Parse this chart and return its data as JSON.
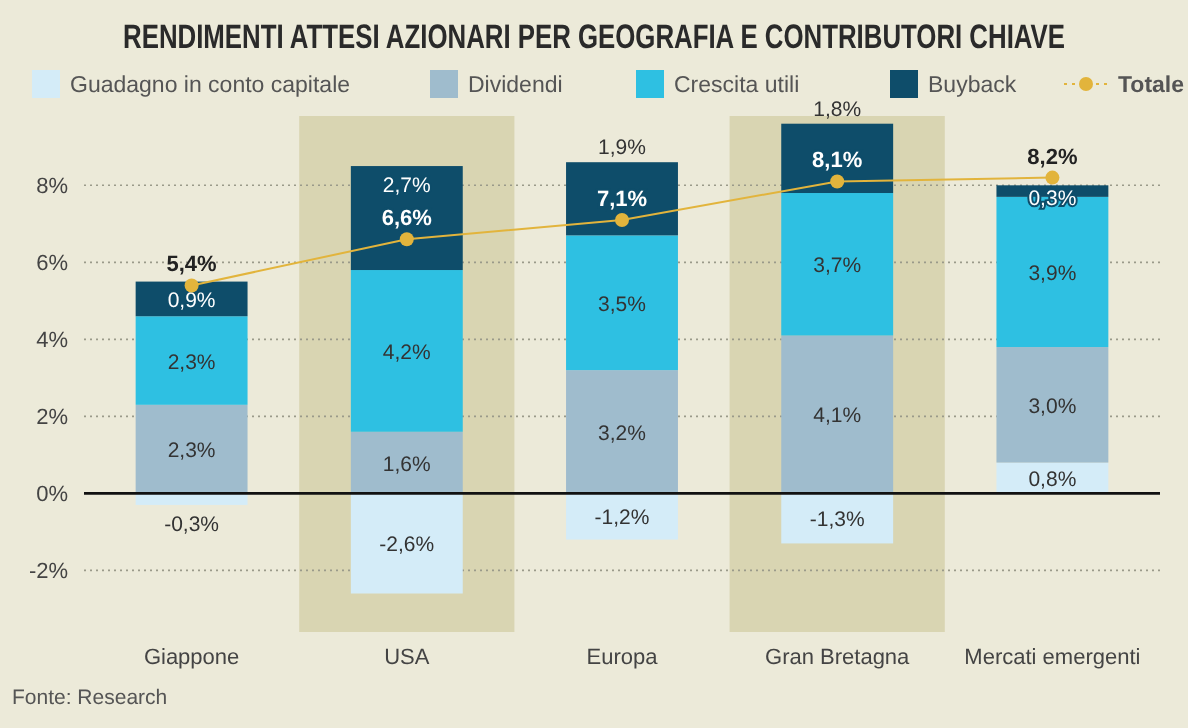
{
  "chart_data": {
    "type": "bar",
    "stacked": true,
    "title": "RENDIMENTI ATTESI AZIONARI PER GEOGRAFIA E CONTRIBUTORI CHIAVE",
    "categories": [
      "Giappone",
      "USA",
      "Europa",
      "Gran Bretagna",
      "Mercati emergenti"
    ],
    "series": [
      {
        "name": "Guadagno in conto capitale",
        "color": "#d4ecf8",
        "values": [
          -0.3,
          -2.6,
          -1.2,
          -1.3,
          0.8
        ],
        "value_labels": [
          "-0,3%",
          "-2,6%",
          "-1,2%",
          "-1,3%",
          "0,8%"
        ]
      },
      {
        "name": "Dividendi",
        "color": "#9fbccd",
        "values": [
          2.3,
          1.6,
          3.2,
          4.1,
          3.0
        ],
        "value_labels": [
          "2,3%",
          "1,6%",
          "3,2%",
          "4,1%",
          "3,0%"
        ]
      },
      {
        "name": "Crescita utili",
        "color": "#2ec0e2",
        "values": [
          2.3,
          4.2,
          3.5,
          3.7,
          3.9
        ],
        "value_labels": [
          "2,3%",
          "4,2%",
          "3,5%",
          "3,7%",
          "3,9%"
        ]
      },
      {
        "name": "Buyback",
        "color": "#0e4d6a",
        "values": [
          0.9,
          2.7,
          1.9,
          1.8,
          0.3
        ],
        "value_labels": [
          "0,9%",
          "2,7%",
          "1,9%",
          "1,8%",
          "0,3%"
        ]
      },
      {
        "name": "Totale",
        "type": "line",
        "color": "#e2b43c",
        "marker": "circle",
        "values": [
          5.4,
          6.6,
          7.1,
          8.1,
          8.2
        ],
        "value_labels": [
          "5,4%",
          "6,6%",
          "7,1%",
          "8,1%",
          "8,2%"
        ]
      }
    ],
    "ylim": [
      -3.6,
      9.8
    ],
    "yticks": [
      {
        "value": -2,
        "label": "-2%"
      },
      {
        "value": 0,
        "label": "0%"
      },
      {
        "value": 2,
        "label": "2%"
      },
      {
        "value": 4,
        "label": "4%"
      },
      {
        "value": 6,
        "label": "6%"
      },
      {
        "value": 8,
        "label": "8%"
      }
    ],
    "grid": "y",
    "legend": "top",
    "bands": [
      {
        "axis": "x",
        "from": "USA",
        "to": "USA",
        "color": "#d9d5b2"
      },
      {
        "axis": "x",
        "from": "Gran Bretagna",
        "to": "Gran Bretagna",
        "color": "#d9d5b2"
      }
    ],
    "annotations": [
      "Fonte: Research"
    ]
  }
}
